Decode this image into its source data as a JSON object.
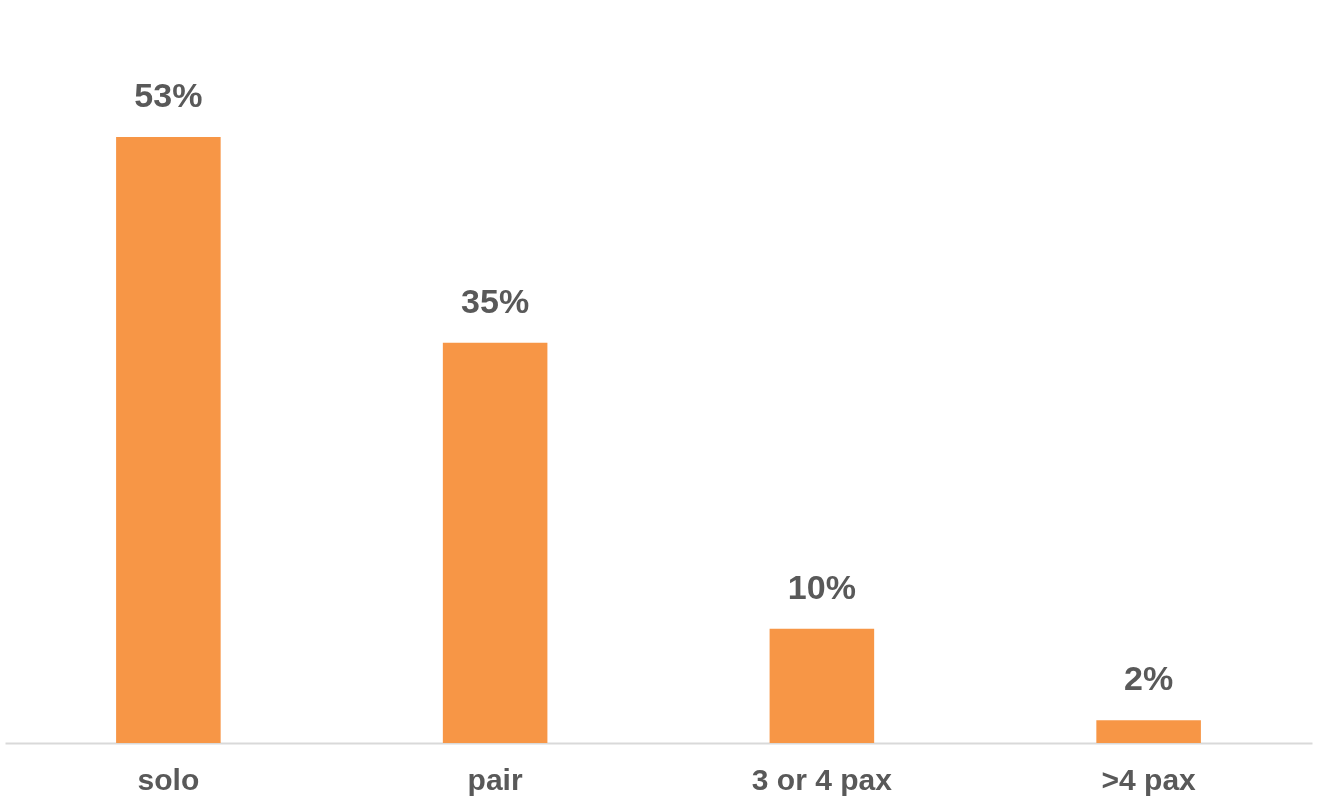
{
  "chart_data": {
    "type": "bar",
    "categories": [
      "solo",
      "pair",
      "3 or 4 pax",
      ">4 pax"
    ],
    "values": [
      53,
      35,
      10,
      2
    ],
    "value_labels": [
      "53%",
      "35%",
      "10%",
      "2%"
    ],
    "color": "#f79646",
    "grid": false
  }
}
